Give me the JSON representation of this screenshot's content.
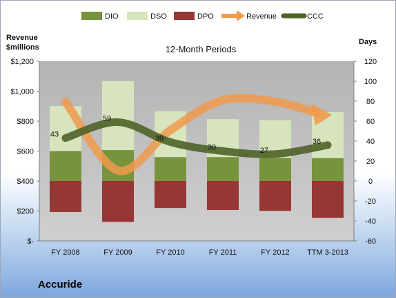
{
  "company": "Accuride",
  "chart_data": {
    "type": "bar",
    "title": "12-Month Periods",
    "categories": [
      "FY 2008",
      "FY 2009",
      "FY 2010",
      "FY 2011",
      "FY 2012",
      "TTM 3-2013"
    ],
    "left_axis": {
      "label_line1": "Revenue",
      "label_line2": "$millions",
      "ylim": [
        0,
        1200
      ],
      "ticks": [
        0,
        200,
        400,
        600,
        800,
        1000,
        1200
      ],
      "tick_labels": [
        "$-",
        "$200",
        "$400",
        "$600",
        "$800",
        "$1,000",
        "$1,200"
      ]
    },
    "right_axis": {
      "label": "Days",
      "ylim": [
        -60,
        120
      ],
      "ticks": [
        -60,
        -40,
        -20,
        0,
        20,
        40,
        60,
        80,
        100,
        120
      ],
      "tick_labels": [
        "-60",
        "-40",
        "-20",
        "0",
        "20",
        "40",
        "60",
        "80",
        "100",
        "120"
      ]
    },
    "series": [
      {
        "name": "DIO",
        "kind": "stacked-bar",
        "axis": "right",
        "color": "#77933c",
        "values": [
          30,
          31,
          24,
          24,
          23,
          23
        ]
      },
      {
        "name": "DSO",
        "kind": "stacked-bar",
        "axis": "right",
        "color": "#d7e4bd",
        "values": [
          45,
          69,
          46,
          38,
          38,
          46
        ]
      },
      {
        "name": "DPO",
        "kind": "bar-negative",
        "axis": "right",
        "color": "#953735",
        "values": [
          -31,
          -41,
          -27,
          -29,
          -30,
          -37
        ]
      },
      {
        "name": "Revenue",
        "kind": "line-arrow",
        "axis": "left",
        "color": "#f09a4e",
        "values": [
          930,
          470,
          740,
          940,
          930,
          840
        ]
      },
      {
        "name": "CCC",
        "kind": "line",
        "axis": "right",
        "color": "#4f6228",
        "values": [
          43,
          59,
          39,
          30,
          27,
          36
        ],
        "data_labels": [
          "43",
          "59",
          "39",
          "30",
          "27",
          "36"
        ]
      }
    ],
    "legend": {
      "placement": "top",
      "items": [
        "DIO",
        "DSO",
        "DPO",
        "Revenue",
        "CCC"
      ]
    },
    "grid": false,
    "plot_background": "#bfbfbf"
  }
}
